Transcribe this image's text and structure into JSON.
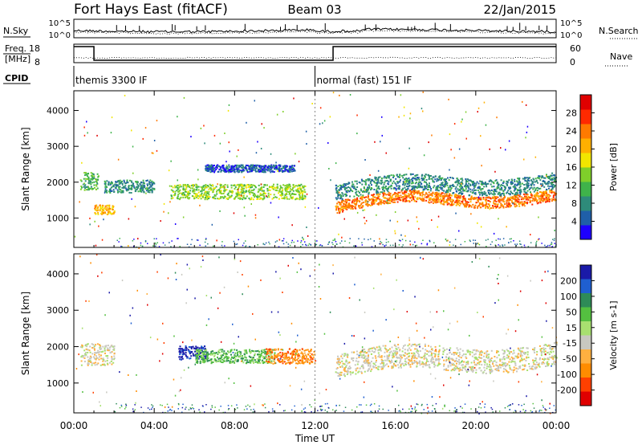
{
  "header": {
    "title": "Fort Hays East (fitACF)",
    "beam": "Beam 03",
    "date": "22/Jan/2015"
  },
  "top_panels": {
    "nsky_label": "N.Sky",
    "nsearch_label": "N.Search",
    "freq_label_line1": "Freq.",
    "freq_label_line2": "[MHz]",
    "nave_label": "Nave",
    "cpid_label": "CPID",
    "noise_ticks": [
      "10^5",
      "10^0"
    ],
    "noise_ticks_right": [
      "10^5",
      "10^0"
    ],
    "freq_ticks": [
      "18",
      "8"
    ],
    "nave_ticks": [
      "60",
      "0"
    ],
    "cpid_segments": [
      {
        "label": "themis 3300 IF",
        "start_hour": 0,
        "end_hour": 12
      },
      {
        "label": "normal (fast) 151 IF",
        "start_hour": 12,
        "end_hour": 24
      }
    ]
  },
  "chart_data": [
    {
      "type": "heatmap",
      "name": "power",
      "ylabel": "Slant Range [km]",
      "ylim": [
        180,
        4550
      ],
      "yticks": [
        "1000",
        "2000",
        "3000",
        "4000"
      ],
      "colorbar_label": "Power [dB]",
      "colorbar_ticks": [
        "4",
        "8",
        "12",
        "16",
        "20",
        "24",
        "28"
      ],
      "colors": [
        "#1e00ff",
        "#1f5fa8",
        "#2e8b7a",
        "#3fb34a",
        "#7fcf2a",
        "#f2e600",
        "#ffb000",
        "#ff7a00",
        "#ff2a00",
        "#e00000"
      ],
      "bands": [
        {
          "start_hour": 0.3,
          "end_hour": 1.2,
          "range_center": 2050,
          "thickness": 500,
          "level": 3
        },
        {
          "start_hour": 1.0,
          "end_hour": 2.0,
          "range_center": 1250,
          "thickness": 260,
          "level": 6
        },
        {
          "start_hour": 1.5,
          "end_hour": 4.0,
          "range_center": 1900,
          "thickness": 350,
          "level": 2
        },
        {
          "start_hour": 4.8,
          "end_hour": 11.5,
          "range_center": 1750,
          "thickness": 420,
          "level": 4
        },
        {
          "start_hour": 6.5,
          "end_hour": 11.0,
          "range_center": 2400,
          "thickness": 200,
          "level": 1
        },
        {
          "start_hour": 13.0,
          "end_hour": 24.0,
          "range_center": 1550,
          "thickness": 320,
          "level": 7
        },
        {
          "start_hour": 13.0,
          "end_hour": 24.0,
          "range_center": 1950,
          "thickness": 450,
          "level": 2
        }
      ]
    },
    {
      "type": "heatmap",
      "name": "velocity",
      "ylabel": "Slant Range [km]",
      "ylim": [
        180,
        4550
      ],
      "yticks": [
        "1000",
        "2000",
        "3000",
        "4000"
      ],
      "colorbar_label": "Velocity [m s-1]",
      "colorbar_ticks": [
        "200",
        "100",
        "50",
        "15",
        "-15",
        "-50",
        "-100",
        "-200"
      ],
      "colors": [
        "#1a1aa8",
        "#1f5fd0",
        "#2e8b57",
        "#54c040",
        "#a8e070",
        "#c8c8c0",
        "#ffb040",
        "#ff8c00",
        "#ff4000",
        "#e00000"
      ],
      "bands": [
        {
          "start_hour": 0.3,
          "end_hour": 2.0,
          "range_center": 1800,
          "thickness": 600,
          "level": 5
        },
        {
          "start_hour": 5.2,
          "end_hour": 6.6,
          "range_center": 1850,
          "thickness": 380,
          "level": 0
        },
        {
          "start_hour": 6.0,
          "end_hour": 10.0,
          "range_center": 1750,
          "thickness": 380,
          "level": 3
        },
        {
          "start_hour": 9.5,
          "end_hour": 12.0,
          "range_center": 1750,
          "thickness": 420,
          "level": 7
        },
        {
          "start_hour": 13.0,
          "end_hour": 24.0,
          "range_center": 1700,
          "thickness": 650,
          "level": 5
        }
      ]
    }
  ],
  "x_axis": {
    "label": "Time UT",
    "ticks": [
      "00:00",
      "04:00",
      "08:00",
      "12:00",
      "16:00",
      "20:00",
      "00:00"
    ],
    "range_hours": [
      0,
      24
    ]
  }
}
